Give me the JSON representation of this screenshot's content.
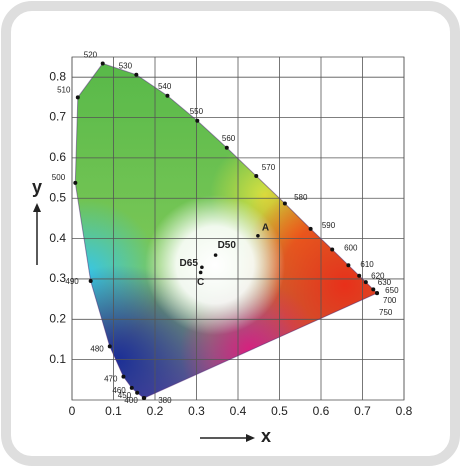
{
  "chart_data": {
    "type": "chromaticity",
    "x_label": "x",
    "y_label": "y",
    "xlim": [
      0,
      0.8
    ],
    "ylim": [
      0,
      0.85
    ],
    "xticks": [
      0,
      0.1,
      0.2,
      0.3,
      0.4,
      0.5,
      0.6,
      0.7,
      0.8
    ],
    "yticks": [
      0.1,
      0.2,
      0.3,
      0.4,
      0.5,
      0.6,
      0.7,
      0.8
    ],
    "grid": true,
    "marker_color": "#111111",
    "spectral_locus": {
      "labels": [
        "380",
        "400",
        "450",
        "460",
        "470",
        "480",
        "490",
        "500",
        "510",
        "520",
        "530",
        "540",
        "550",
        "560",
        "570",
        "580",
        "590",
        "600",
        "610",
        "620",
        "630",
        "650",
        "700",
        "750"
      ],
      "x": [
        0.174,
        0.173,
        0.157,
        0.144,
        0.124,
        0.091,
        0.045,
        0.008,
        0.014,
        0.074,
        0.155,
        0.23,
        0.302,
        0.373,
        0.444,
        0.513,
        0.575,
        0.627,
        0.666,
        0.692,
        0.708,
        0.726,
        0.735,
        0.735
      ],
      "y": [
        0.005,
        0.005,
        0.018,
        0.03,
        0.058,
        0.133,
        0.295,
        0.538,
        0.75,
        0.834,
        0.806,
        0.754,
        0.692,
        0.625,
        0.555,
        0.487,
        0.424,
        0.373,
        0.334,
        0.308,
        0.292,
        0.274,
        0.265,
        0.265
      ]
    },
    "white_points": {
      "labels": [
        "A",
        "D50",
        "D65",
        "C"
      ],
      "x": [
        0.448,
        0.346,
        0.313,
        0.31
      ],
      "y": [
        0.407,
        0.359,
        0.329,
        0.316
      ]
    }
  }
}
